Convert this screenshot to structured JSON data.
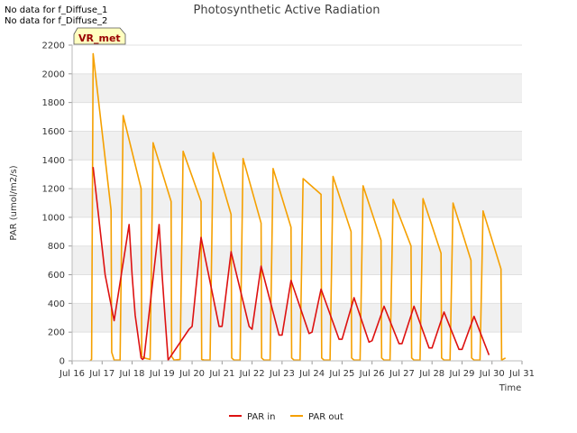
{
  "notes": [
    "No data for f_Diffuse_1",
    "No data for f_Diffuse_2"
  ],
  "chart_data": {
    "type": "line",
    "title": "Photosynthetic Active Radiation",
    "xlabel": "Time",
    "ylabel": "PAR (umol/m2/s)",
    "xlim": [
      16,
      31
    ],
    "ylim": [
      0,
      2200
    ],
    "x_tick_values": [
      16,
      17,
      18,
      19,
      20,
      21,
      22,
      23,
      24,
      25,
      26,
      27,
      28,
      29,
      30,
      31
    ],
    "x_tick_labels": [
      "Jul 16",
      "Jul 17",
      "Jul 18",
      "Jul 19",
      "Jul 20",
      "Jul 21",
      "Jul 22",
      "Jul 23",
      "Jul 24",
      "Jul 25",
      "Jul 26",
      "Jul 27",
      "Jul 28",
      "Jul 29",
      "Jul 30",
      "Jul 31"
    ],
    "y_tick_values": [
      0,
      200,
      400,
      600,
      800,
      1000,
      1200,
      1400,
      1600,
      1800,
      2000,
      2200
    ],
    "y_tick_labels": [
      "0",
      "200",
      "400",
      "600",
      "800",
      "1000",
      "1200",
      "1400",
      "1600",
      "1800",
      "2000",
      "2200"
    ],
    "annotation": "VR_met",
    "legend_position": "bottom-center",
    "series": [
      {
        "name": "PAR in",
        "color": "#dd1111",
        "x": [
          16.7,
          17.1,
          17.4,
          17.9,
          18.0,
          18.1,
          18.3,
          18.35,
          18.4,
          18.9,
          19.0,
          19.1,
          19.2,
          19.9,
          20.0,
          20.3,
          20.9,
          21.0,
          21.3,
          21.9,
          22.0,
          22.3,
          22.9,
          23.0,
          23.3,
          23.9,
          24.0,
          24.3,
          24.9,
          25.0,
          25.4,
          25.9,
          26.0,
          26.4,
          26.9,
          27.0,
          27.4,
          27.9,
          28.0,
          28.4,
          28.9,
          29.0,
          29.4,
          29.9
        ],
        "y": [
          1350,
          600,
          280,
          950,
          600,
          320,
          20,
          10,
          20,
          950,
          600,
          300,
          5,
          220,
          240,
          860,
          240,
          240,
          760,
          240,
          220,
          660,
          180,
          180,
          560,
          190,
          200,
          500,
          150,
          150,
          440,
          130,
          140,
          380,
          120,
          120,
          380,
          90,
          90,
          340,
          80,
          80,
          310,
          40
        ]
      },
      {
        "name": "PAR out",
        "color": "#f5a000",
        "x": [
          16.6,
          16.65,
          16.7,
          17.3,
          17.32,
          17.4,
          17.6,
          17.7,
          18.3,
          18.32,
          18.4,
          18.6,
          18.7,
          19.3,
          19.32,
          19.4,
          19.6,
          19.7,
          20.3,
          20.32,
          20.4,
          20.6,
          20.7,
          21.3,
          21.32,
          21.4,
          21.6,
          21.7,
          22.3,
          22.32,
          22.4,
          22.6,
          22.7,
          23.3,
          23.32,
          23.4,
          23.6,
          23.7,
          24.3,
          24.32,
          24.4,
          24.6,
          24.7,
          25.3,
          25.32,
          25.4,
          25.6,
          25.7,
          26.3,
          26.32,
          26.4,
          26.6,
          26.7,
          27.3,
          27.32,
          27.4,
          27.6,
          27.7,
          28.3,
          28.32,
          28.4,
          28.6,
          28.7,
          29.3,
          29.32,
          29.4,
          29.6,
          29.7,
          30.3,
          30.32,
          30.45
        ],
        "y": [
          0,
          10,
          2140,
          1050,
          60,
          5,
          5,
          1710,
          1200,
          30,
          20,
          10,
          1520,
          1110,
          30,
          5,
          10,
          1460,
          1110,
          10,
          5,
          5,
          1450,
          1020,
          20,
          5,
          5,
          1410,
          960,
          20,
          5,
          5,
          1340,
          930,
          20,
          5,
          5,
          1270,
          1160,
          20,
          5,
          5,
          1285,
          900,
          20,
          5,
          5,
          1220,
          840,
          20,
          5,
          5,
          1125,
          800,
          20,
          5,
          5,
          1130,
          750,
          20,
          5,
          5,
          1100,
          700,
          20,
          5,
          5,
          1045,
          640,
          5,
          20
        ]
      }
    ]
  }
}
